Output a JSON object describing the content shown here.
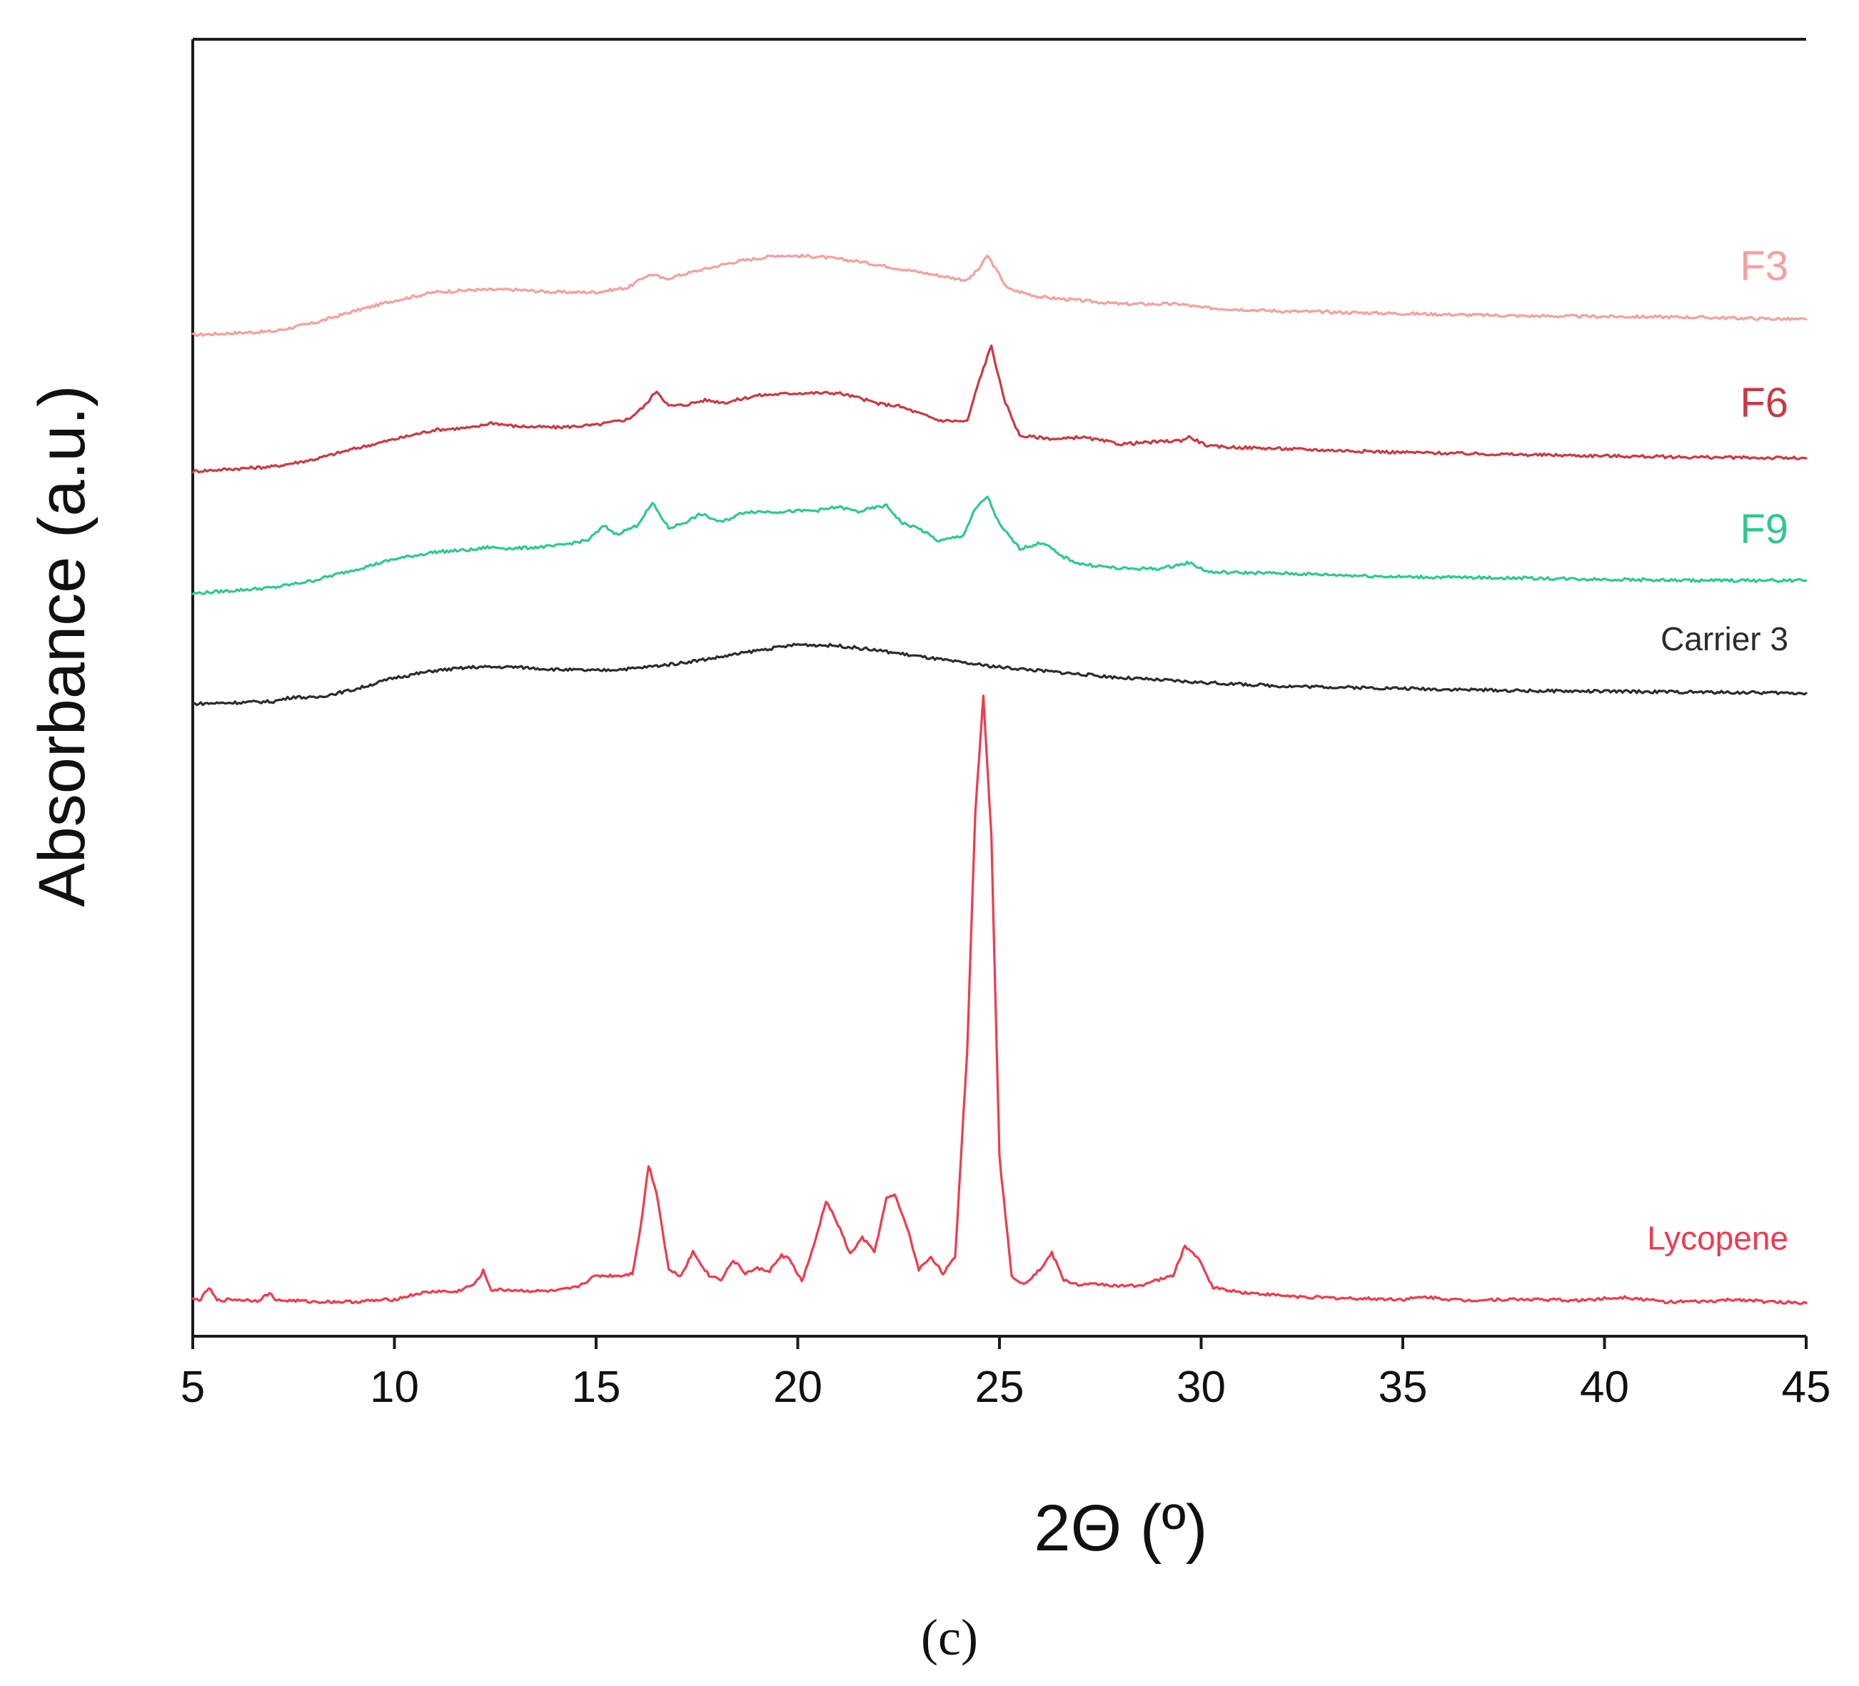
{
  "chart_data": {
    "type": "line",
    "title": "",
    "panel_label": "(c)",
    "xlabel": "2Θ (º)",
    "ylabel": "Absorbance (a.u.)",
    "xlim": [
      5,
      45
    ],
    "xticks": [
      5,
      10,
      15,
      20,
      25,
      30,
      35,
      40,
      45
    ],
    "xtick_labels": [
      "5",
      "10",
      "15",
      "20",
      "25",
      "30",
      "35",
      "40",
      "45"
    ],
    "ylim": [
      0,
      100
    ],
    "yticks_shown": false,
    "grid": false,
    "legend": "inline labels at right end of each trace",
    "series": [
      {
        "name": "F3",
        "color": "#f4a0a0",
        "x": [
          5,
          7,
          8,
          9,
          10,
          11,
          12,
          13,
          14,
          15,
          15.8,
          16.2,
          16.4,
          16.7,
          17.5,
          18.5,
          19.5,
          20.5,
          21.5,
          22.5,
          23.5,
          24.2,
          24.5,
          24.7,
          24.9,
          25.2,
          26,
          27,
          28,
          29.5,
          30,
          32,
          35,
          38,
          42,
          45
        ],
        "y": [
          82.3,
          82.6,
          83.3,
          84.3,
          85.2,
          85.9,
          86.1,
          86.1,
          85.9,
          85.9,
          86.3,
          87.2,
          87.4,
          87.0,
          87.7,
          88.5,
          89.0,
          88.9,
          88.5,
          87.9,
          87.3,
          86.9,
          87.9,
          89.0,
          87.9,
          86.2,
          85.5,
          85.2,
          84.9,
          84.9,
          84.6,
          84.3,
          84.1,
          83.9,
          83.8,
          83.6
        ]
      },
      {
        "name": "F6",
        "color": "#c83a44",
        "x": [
          5,
          7,
          8,
          9,
          10,
          11,
          12,
          12.4,
          13,
          14,
          15,
          15.8,
          16.2,
          16.5,
          16.8,
          17.2,
          17.7,
          18.2,
          19,
          20,
          21,
          21.5,
          22,
          22.5,
          23.5,
          24.2,
          24.5,
          24.8,
          25.1,
          25.5,
          26.5,
          27,
          28,
          29.5,
          29.7,
          30.2,
          32,
          35,
          38,
          42,
          45
        ],
        "y": [
          70.8,
          71.2,
          71.8,
          72.7,
          73.5,
          74.3,
          74.5,
          74.9,
          74.6,
          74.5,
          74.7,
          75.2,
          76.3,
          77.6,
          76.3,
          76.4,
          76.8,
          76.6,
          77.2,
          77.4,
          77.4,
          77.0,
          76.5,
          76.3,
          75.1,
          75.0,
          78.5,
          81.4,
          77.0,
          73.8,
          73.5,
          73.7,
          73.1,
          73.4,
          73.7,
          72.9,
          72.7,
          72.4,
          72.2,
          72.0,
          71.9
        ]
      },
      {
        "name": "F9",
        "color": "#2ec98e",
        "x": [
          5,
          7,
          8,
          9,
          10,
          11,
          12,
          12.3,
          13,
          14,
          14.8,
          15.2,
          15.5,
          16,
          16.4,
          16.8,
          17.2,
          17.6,
          18.1,
          18.7,
          19.5,
          20.5,
          21,
          21.5,
          22,
          22.2,
          22.6,
          23,
          23.5,
          24.1,
          24.4,
          24.7,
          25,
          25.5,
          26.1,
          26.5,
          27,
          28,
          29,
          29.7,
          30.2,
          32,
          35,
          38,
          42,
          45
        ],
        "y": [
          60.5,
          61.0,
          61.6,
          62.5,
          63.4,
          64.0,
          64.2,
          64.4,
          64.3,
          64.5,
          65.0,
          66.2,
          65.5,
          66.2,
          68.1,
          66.0,
          66.5,
          67.2,
          66.5,
          67.4,
          67.4,
          67.5,
          67.8,
          67.4,
          67.8,
          67.9,
          66.4,
          66.0,
          64.9,
          65.4,
          67.6,
          68.7,
          66.3,
          64.3,
          64.8,
          63.7,
          63.0,
          62.6,
          62.6,
          63.1,
          62.3,
          62.2,
          61.9,
          61.8,
          61.6,
          61.6
        ]
      },
      {
        "name": "Carrier 3",
        "color": "#2b2b2b",
        "x": [
          5,
          7,
          7.5,
          8,
          9,
          10,
          11,
          12,
          13,
          14,
          15,
          16,
          17,
          18,
          19,
          20,
          21,
          22,
          23,
          24,
          25,
          26,
          27,
          28,
          29,
          30,
          32,
          35,
          38,
          42,
          45
        ],
        "y": [
          51.2,
          51.4,
          51.8,
          51.7,
          52.4,
          53.4,
          54.0,
          54.3,
          54.3,
          54.1,
          54.0,
          54.2,
          54.6,
          55.1,
          55.7,
          56.2,
          56.1,
          55.7,
          55.2,
          54.7,
          54.3,
          54.0,
          53.7,
          53.4,
          53.2,
          53.0,
          52.7,
          52.5,
          52.3,
          52.2,
          52.1
        ]
      },
      {
        "name": "Lycopene",
        "color": "#ee3b4e",
        "x": [
          5,
          5.2,
          5.4,
          5.6,
          6,
          6.6,
          6.9,
          7.1,
          7.5,
          8,
          9,
          10,
          10.6,
          11.1,
          11.5,
          12.0,
          12.2,
          12.4,
          12.8,
          13.5,
          14,
          14.5,
          15,
          15.3,
          15.6,
          15.9,
          16.1,
          16.3,
          16.5,
          16.8,
          17.1,
          17.4,
          17.8,
          18.1,
          18.4,
          18.7,
          19,
          19.3,
          19.6,
          19.8,
          20.1,
          20.4,
          20.7,
          21.0,
          21.3,
          21.6,
          21.9,
          22.2,
          22.4,
          22.7,
          23.0,
          23.3,
          23.6,
          23.9,
          24.2,
          24.4,
          24.6,
          24.8,
          25.0,
          25.3,
          25.6,
          26.0,
          26.3,
          26.6,
          27,
          27.5,
          28,
          28.5,
          29,
          29.3,
          29.6,
          29.9,
          30.3,
          31,
          31.7,
          32.5,
          33.5,
          35,
          35.6,
          36.5,
          37.3,
          38.3,
          39.3,
          40.5,
          41.5,
          42.5,
          43.3,
          44,
          45
        ],
        "y": [
          1.0,
          1.0,
          2.0,
          0.9,
          1.0,
          0.9,
          1.5,
          0.9,
          0.9,
          0.8,
          0.8,
          1.0,
          1.5,
          1.7,
          1.6,
          2.3,
          3.4,
          1.8,
          1.8,
          1.7,
          1.7,
          2.0,
          3.0,
          3.0,
          3.0,
          3.2,
          7.0,
          12.3,
          10.0,
          3.5,
          3.0,
          5.0,
          3.0,
          2.7,
          4.3,
          3.2,
          3.6,
          3.4,
          4.7,
          4.4,
          2.5,
          5.5,
          9.3,
          7.3,
          4.8,
          6.2,
          5.0,
          9.5,
          9.8,
          7.2,
          3.5,
          4.6,
          3.2,
          4.5,
          22.0,
          42.0,
          52.0,
          40.0,
          13.0,
          3.0,
          2.3,
          3.5,
          4.9,
          2.6,
          2.2,
          2.3,
          2.1,
          2.2,
          2.7,
          3.0,
          5.5,
          4.6,
          2.0,
          1.6,
          1.4,
          1.2,
          1.1,
          1.0,
          1.2,
          0.9,
          1.0,
          1.0,
          0.9,
          1.2,
          0.8,
          0.8,
          1.0,
          0.8,
          0.7
        ]
      }
    ]
  }
}
